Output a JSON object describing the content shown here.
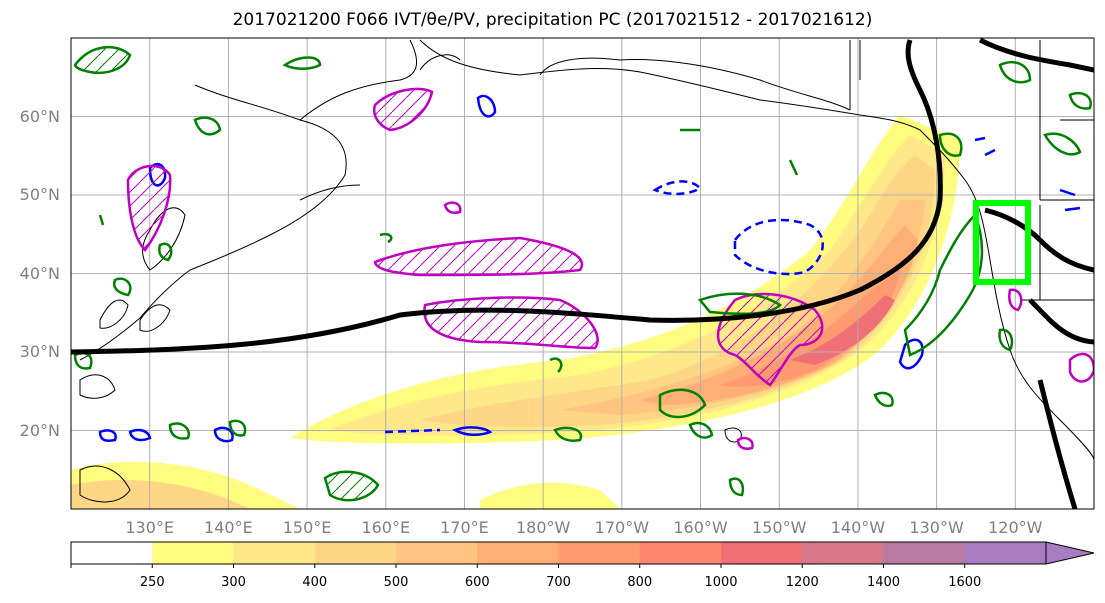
{
  "title": "2017021200 F066 IVT/θe/PV, precipitation PC (2017021512 - 2017021612)",
  "map": {
    "lat_labels": [
      {
        "text": "60°N",
        "lat": 60
      },
      {
        "text": "50°N",
        "lat": 50
      },
      {
        "text": "40°N",
        "lat": 40
      },
      {
        "text": "30°N",
        "lat": 30
      },
      {
        "text": "20°N",
        "lat": 20
      }
    ],
    "lon_labels": [
      {
        "text": "130°E",
        "lon": 130
      },
      {
        "text": "140°E",
        "lon": 140
      },
      {
        "text": "150°E",
        "lon": 150
      },
      {
        "text": "160°E",
        "lon": 160
      },
      {
        "text": "170°E",
        "lon": 170
      },
      {
        "text": "180°W",
        "lon": 180
      },
      {
        "text": "170°W",
        "lon": 190
      },
      {
        "text": "160°W",
        "lon": 200
      },
      {
        "text": "150°W",
        "lon": 210
      },
      {
        "text": "140°W",
        "lon": 220
      },
      {
        "text": "130°W",
        "lon": 230
      },
      {
        "text": "120°W",
        "lon": 240
      }
    ],
    "extent": {
      "lon_min": 120,
      "lon_max": 250,
      "lat_min": 10,
      "lat_max": 70
    },
    "colors": {
      "land_outline": "#000000",
      "grid": "#b0b0b0",
      "pv_contour": "#008000",
      "positive_pc": "#c000c0",
      "negative_pc": "#0000ff",
      "jet_line": "#000000",
      "target_box": "#00ff00"
    },
    "target_box": {
      "lon_min": 235,
      "lon_max": 241.5,
      "lat_min": 39,
      "lat_max": 49
    }
  },
  "colorbar": {
    "levels": [
      "250",
      "300",
      "400",
      "500",
      "600",
      "700",
      "800",
      "1000",
      "1200",
      "1400",
      "1600"
    ],
    "colors": [
      "#ffffff",
      "#fffc80",
      "#ffe88a",
      "#ffd685",
      "#ffc47f",
      "#ffaf76",
      "#ff9a70",
      "#ff8670",
      "#f07078",
      "#d8788a",
      "#b87aa0",
      "#a87cc0"
    ],
    "extend": "max"
  }
}
